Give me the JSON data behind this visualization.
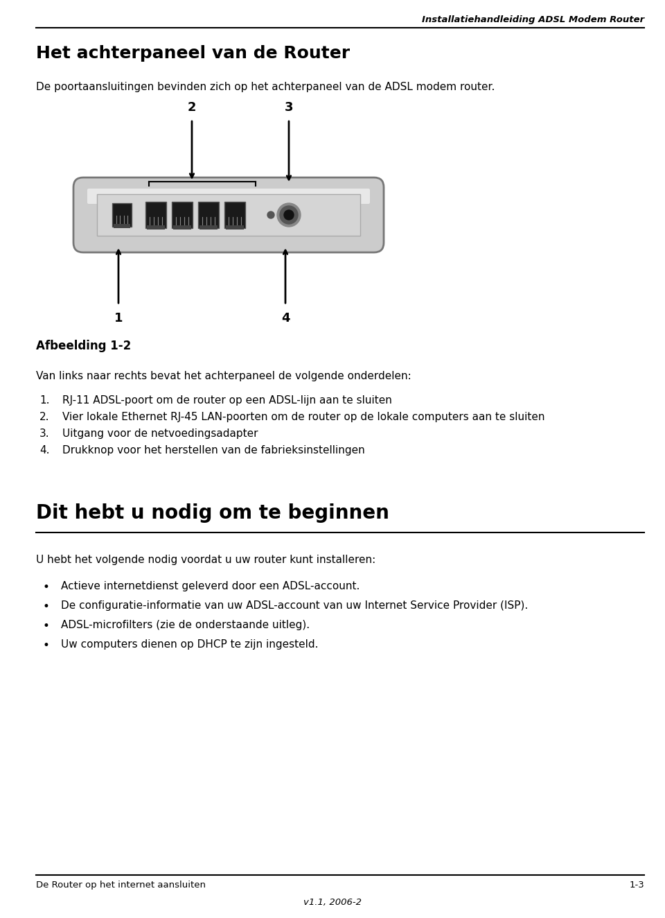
{
  "bg_color": "#ffffff",
  "header_italic": "Installatiehandleiding ADSL Modem Router",
  "section1_title": "Het achterpaneel van de Router",
  "section1_body": "De poortaansluitingen bevinden zich op het achterpaneel van de ADSL modem router.",
  "figure_caption": "Afbeelding 1-2",
  "figure_intro": "Van links naar rechts bevat het achterpaneel de volgende onderdelen:",
  "list_items": [
    "RJ-11 ADSL-poort om de router op een ADSL-lijn aan te sluiten",
    "Vier lokale Ethernet RJ-45 LAN-poorten om de router op de lokale computers aan te sluiten",
    "Uitgang voor de netvoedingsadapter",
    "Drukknop voor het herstellen van de fabrieksinstellingen"
  ],
  "section2_title": "Dit hebt u nodig om te beginnen",
  "section2_body": "U hebt het volgende nodig voordat u uw router kunt installeren:",
  "bullet_items": [
    "Actieve internetdienst geleverd door een ADSL-account.",
    "De configuratie-informatie van uw ADSL-account van uw Internet Service Provider (ISP).",
    "ADSL-microfilters (zie de onderstaande uitleg).",
    "Uw computers dienen op DHCP te zijn ingesteld."
  ],
  "footer_left": "De Router op het internet aansluiten",
  "footer_right": "1-3",
  "footer_center": "v1.1, 2006-2"
}
